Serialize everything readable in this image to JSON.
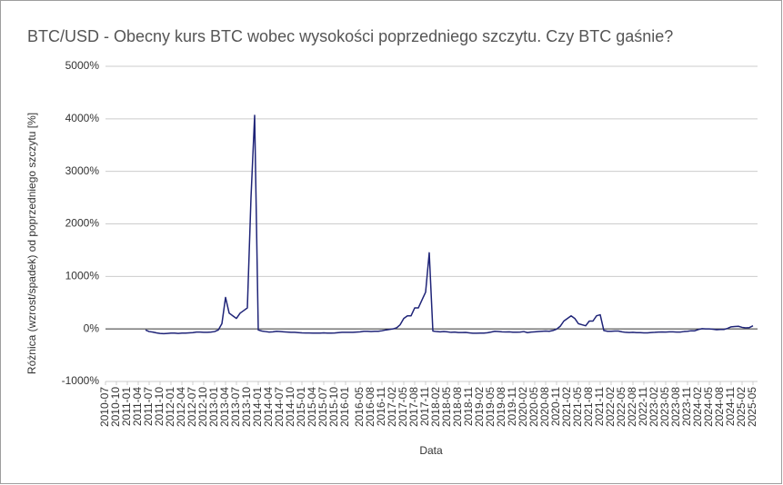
{
  "chart_data": {
    "type": "line",
    "title": "BTC/USD - Obecny kurs BTC wobec wysokości poprzedniego szczytu. Czy BTC gaśnie?",
    "x_label": "Data",
    "y_label": "Różnica (wzrost/spadek) od poprzedniego szczytu [%]",
    "x": [
      "2011-06",
      "2011-07",
      "2011-08",
      "2011-09",
      "2011-10",
      "2011-11",
      "2011-12",
      "2012-01",
      "2012-02",
      "2012-03",
      "2012-04",
      "2012-05",
      "2012-06",
      "2012-07",
      "2012-08",
      "2012-09",
      "2012-10",
      "2012-11",
      "2012-12",
      "2013-01",
      "2013-02",
      "2013-03",
      "2013-04",
      "2013-05",
      "2013-06",
      "2013-07",
      "2013-08",
      "2013-09",
      "2013-10",
      "2013-11",
      "2013-12",
      "2014-01",
      "2014-02",
      "2014-03",
      "2014-04",
      "2014-05",
      "2014-06",
      "2014-07",
      "2014-08",
      "2014-09",
      "2014-10",
      "2014-11",
      "2014-12",
      "2015-01",
      "2015-02",
      "2015-03",
      "2015-04",
      "2015-05",
      "2015-06",
      "2015-07",
      "2015-08",
      "2015-09",
      "2015-10",
      "2015-11",
      "2015-12",
      "2016-01",
      "2016-02",
      "2016-03",
      "2016-04",
      "2016-05",
      "2016-06",
      "2016-07",
      "2016-08",
      "2016-09",
      "2016-10",
      "2016-11",
      "2016-12",
      "2017-01",
      "2017-02",
      "2017-03",
      "2017-04",
      "2017-05",
      "2017-06",
      "2017-07",
      "2017-08",
      "2017-09",
      "2017-10",
      "2017-11",
      "2017-12",
      "2018-01",
      "2018-02",
      "2018-03",
      "2018-04",
      "2018-05",
      "2018-06",
      "2018-07",
      "2018-08",
      "2018-09",
      "2018-10",
      "2018-11",
      "2018-12",
      "2019-01",
      "2019-02",
      "2019-03",
      "2019-04",
      "2019-05",
      "2019-06",
      "2019-07",
      "2019-08",
      "2019-09",
      "2019-10",
      "2019-11",
      "2019-12",
      "2020-01",
      "2020-02",
      "2020-03",
      "2020-04",
      "2020-05",
      "2020-06",
      "2020-07",
      "2020-08",
      "2020-09",
      "2020-10",
      "2020-11",
      "2020-12",
      "2021-01",
      "2021-02",
      "2021-03",
      "2021-04",
      "2021-05",
      "2021-06",
      "2021-07",
      "2021-08",
      "2021-09",
      "2021-10",
      "2021-11",
      "2021-12",
      "2022-01",
      "2022-02",
      "2022-03",
      "2022-04",
      "2022-05",
      "2022-06",
      "2022-07",
      "2022-08",
      "2022-09",
      "2022-10",
      "2022-11",
      "2022-12",
      "2023-01",
      "2023-02",
      "2023-03",
      "2023-04",
      "2023-05",
      "2023-06",
      "2023-07",
      "2023-08",
      "2023-09",
      "2023-10",
      "2023-11",
      "2023-12",
      "2024-01",
      "2024-02",
      "2024-03",
      "2024-04",
      "2024-05",
      "2024-06",
      "2024-07",
      "2024-08",
      "2024-09",
      "2024-10",
      "2024-11",
      "2024-12",
      "2025-01",
      "2025-02",
      "2025-03",
      "2025-04",
      "2025-05"
    ],
    "series": [
      {
        "name": "BTC/USD",
        "color": "#1f2478",
        "values": [
          -20,
          -50,
          -60,
          -75,
          -85,
          -90,
          -85,
          -80,
          -80,
          -85,
          -80,
          -80,
          -75,
          -70,
          -60,
          -60,
          -65,
          -65,
          -60,
          -50,
          -20,
          100,
          600,
          300,
          250,
          200,
          300,
          350,
          400,
          2500,
          4066,
          -20,
          -40,
          -50,
          -60,
          -55,
          -45,
          -50,
          -55,
          -60,
          -65,
          -65,
          -70,
          -75,
          -78,
          -78,
          -80,
          -80,
          -80,
          -75,
          -80,
          -80,
          -78,
          -70,
          -65,
          -65,
          -65,
          -65,
          -60,
          -55,
          -45,
          -45,
          -50,
          -45,
          -45,
          -35,
          -20,
          -10,
          0,
          20,
          80,
          200,
          250,
          250,
          400,
          400,
          550,
          700,
          1450,
          -40,
          -50,
          -55,
          -50,
          -55,
          -65,
          -60,
          -68,
          -68,
          -67,
          -75,
          -82,
          -82,
          -80,
          -80,
          -73,
          -60,
          -45,
          -50,
          -55,
          -58,
          -55,
          -62,
          -63,
          -60,
          -50,
          -70,
          -60,
          -55,
          -50,
          -45,
          -40,
          -45,
          -30,
          -5,
          50,
          150,
          200,
          250,
          200,
          100,
          80,
          60,
          150,
          150,
          250,
          270,
          -30,
          -45,
          -45,
          -40,
          -40,
          -55,
          -65,
          -68,
          -65,
          -70,
          -70,
          -75,
          -75,
          -68,
          -65,
          -60,
          -58,
          -60,
          -55,
          -55,
          -60,
          -60,
          -50,
          -45,
          -35,
          -35,
          -10,
          5,
          0,
          0,
          -5,
          -15,
          -10,
          -10,
          10,
          40,
          45,
          50,
          30,
          20,
          25,
          60
        ]
      }
    ],
    "xlim": [
      "2010-07",
      "2025-05"
    ],
    "xticks": [
      "2010-07",
      "2010-10",
      "2011-01",
      "2011-04",
      "2011-07",
      "2011-10",
      "2012-01",
      "2012-04",
      "2012-07",
      "2012-10",
      "2013-01",
      "2013-04",
      "2013-07",
      "2013-10",
      "2014-01",
      "2014-04",
      "2014-07",
      "2014-10",
      "2015-01",
      "2015-04",
      "2015-07",
      "2015-10",
      "2016-01",
      "2016-05",
      "2016-08",
      "2016-11",
      "2017-02",
      "2017-05",
      "2017-08",
      "2017-11",
      "2018-02",
      "2018-05",
      "2018-08",
      "2018-11",
      "2019-02",
      "2019-05",
      "2019-08",
      "2019-11",
      "2020-02",
      "2020-05",
      "2020-08",
      "2020-11",
      "2021-02",
      "2021-05",
      "2021-08",
      "2021-11",
      "2022-02",
      "2022-05",
      "2022-08",
      "2022-11",
      "2023-02",
      "2023-05",
      "2023-08",
      "2023-11",
      "2024-02",
      "2024-05",
      "2024-08",
      "2024-11",
      "2025-02",
      "2025-05"
    ],
    "ylim": [
      -1000,
      5000
    ],
    "yticks": [
      {
        "value": -1000,
        "label": "-1000%"
      },
      {
        "value": 0,
        "label": "0%"
      },
      {
        "value": 1000,
        "label": "1000%"
      },
      {
        "value": 2000,
        "label": "2000%"
      },
      {
        "value": 3000,
        "label": "3000%"
      },
      {
        "value": 4000,
        "label": "4000%"
      },
      {
        "value": 5000,
        "label": "5000%"
      }
    ],
    "grid": true
  }
}
